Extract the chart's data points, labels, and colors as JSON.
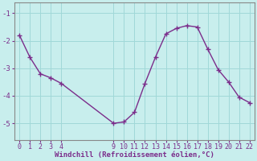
{
  "x": [
    0,
    1,
    2,
    3,
    4,
    9,
    10,
    11,
    12,
    13,
    14,
    15,
    16,
    17,
    18,
    19,
    20,
    21,
    22
  ],
  "y": [
    -1.8,
    -2.6,
    -3.2,
    -3.35,
    -3.55,
    -5.0,
    -4.95,
    -4.6,
    -3.55,
    -2.6,
    -1.75,
    -1.55,
    -1.45,
    -1.5,
    -2.3,
    -3.05,
    -3.5,
    -4.05,
    -4.25
  ],
  "line_color": "#7b2d8b",
  "marker": "+",
  "bg_color": "#c8eeed",
  "grid_color": "#a0d8d8",
  "axis_color": "#7b2d8b",
  "spine_color": "#888888",
  "xlabel": "Windchill (Refroidissement éolien,°C)",
  "xlabel_color": "#7b2d8b",
  "ylim": [
    -5.6,
    -0.6
  ],
  "xlim": [
    -0.5,
    22.5
  ],
  "yticks": [
    -5,
    -4,
    -3,
    -2,
    -1
  ],
  "xticks": [
    0,
    1,
    2,
    3,
    4,
    9,
    10,
    11,
    12,
    13,
    14,
    15,
    16,
    17,
    18,
    19,
    20,
    21,
    22
  ],
  "figsize": [
    3.2,
    2.0
  ],
  "dpi": 100
}
